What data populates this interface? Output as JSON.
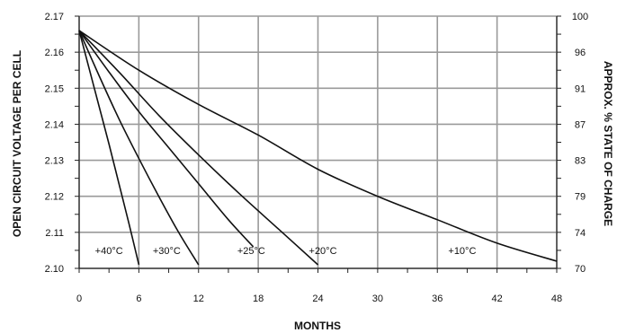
{
  "chart_data": {
    "type": "line",
    "xlabel": "MONTHS",
    "ylabel": "OPEN CIRCUIT VOLTAGE PER CELL",
    "y2label": "APPROX. % STATE OF CHARGE",
    "xlim": [
      0,
      48
    ],
    "ylim": [
      2.1,
      2.17
    ],
    "grid": true,
    "x_ticks": [
      "0",
      "6",
      "12",
      "18",
      "24",
      "30",
      "36",
      "42",
      "48"
    ],
    "y_ticks": [
      "2.10",
      "2.11",
      "2.12",
      "2.13",
      "2.14",
      "2.15",
      "2.16",
      "2.17"
    ],
    "y2_ticks": [
      "70",
      "74",
      "79",
      "83",
      "87",
      "91",
      "96",
      "100"
    ],
    "series": [
      {
        "name": "+40°C",
        "x": [
          0,
          1,
          2,
          3,
          4,
          5,
          6
        ],
        "y": [
          2.166,
          2.1555,
          2.145,
          2.1345,
          2.1235,
          2.1125,
          2.101
        ]
      },
      {
        "name": "+30°C",
        "x": [
          0,
          2,
          4,
          6,
          8,
          10,
          12
        ],
        "y": [
          2.166,
          2.1535,
          2.1415,
          2.1305,
          2.12,
          2.11,
          2.101
        ]
      },
      {
        "name": "+25°C",
        "x": [
          0,
          3,
          6,
          9,
          12,
          15,
          17.5
        ],
        "y": [
          2.166,
          2.1545,
          2.1435,
          2.1335,
          2.1235,
          2.1135,
          2.106
        ]
      },
      {
        "name": "+20°C",
        "x": [
          0,
          4,
          8,
          12,
          16,
          20,
          24
        ],
        "y": [
          2.166,
          2.1545,
          2.1425,
          2.1315,
          2.121,
          2.111,
          2.101
        ]
      },
      {
        "name": "+10°C",
        "x": [
          0,
          6,
          12,
          18,
          24,
          30,
          36,
          42,
          48
        ],
        "y": [
          2.166,
          2.155,
          2.1455,
          2.137,
          2.1275,
          2.12,
          2.1135,
          2.107,
          2.102
        ]
      }
    ],
    "series_label_positions": [
      {
        "name": "+40°C",
        "x": 3,
        "y": 2.105
      },
      {
        "name": "+30°C",
        "x": 8.8,
        "y": 2.105
      },
      {
        "name": "+25°C",
        "x": 17.3,
        "y": 2.105
      },
      {
        "name": "+20°C",
        "x": 24.5,
        "y": 2.105
      },
      {
        "name": "+10°C",
        "x": 38.5,
        "y": 2.105
      }
    ]
  }
}
